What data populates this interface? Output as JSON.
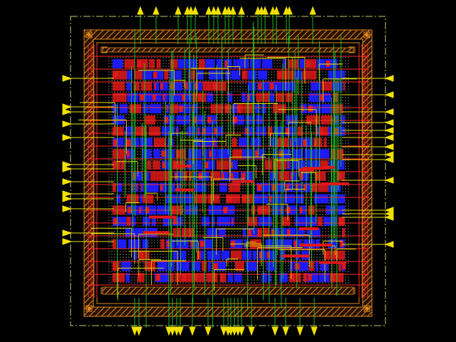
{
  "view": {
    "background": "#000000"
  },
  "colors": {
    "die_boundary": "#c8c864",
    "pad_ring": "#e08a20",
    "pad_ring_hatch": "#b0501a",
    "metal1_red": "#e01818",
    "metal2_blue": "#1c1cff",
    "metal3_green": "#22cc22",
    "metal4_yellow": "#e8e000",
    "pin_marker": "#f0e000",
    "core_fill_dots": "#d0d0d0",
    "power_stripe": "#ff2a2a"
  },
  "layers": [
    {
      "name": "metal1",
      "color": "#e01818"
    },
    {
      "name": "metal2",
      "color": "#1c1cff"
    },
    {
      "name": "metal3",
      "color": "#22cc22"
    },
    {
      "name": "metal4",
      "color": "#e8e000"
    }
  ],
  "pins": {
    "top_count": 22,
    "bottom_count": 20,
    "left_count": 14,
    "right_count": 14,
    "marker_icon": "triangle-pin-icon"
  },
  "core_rows": 20
}
